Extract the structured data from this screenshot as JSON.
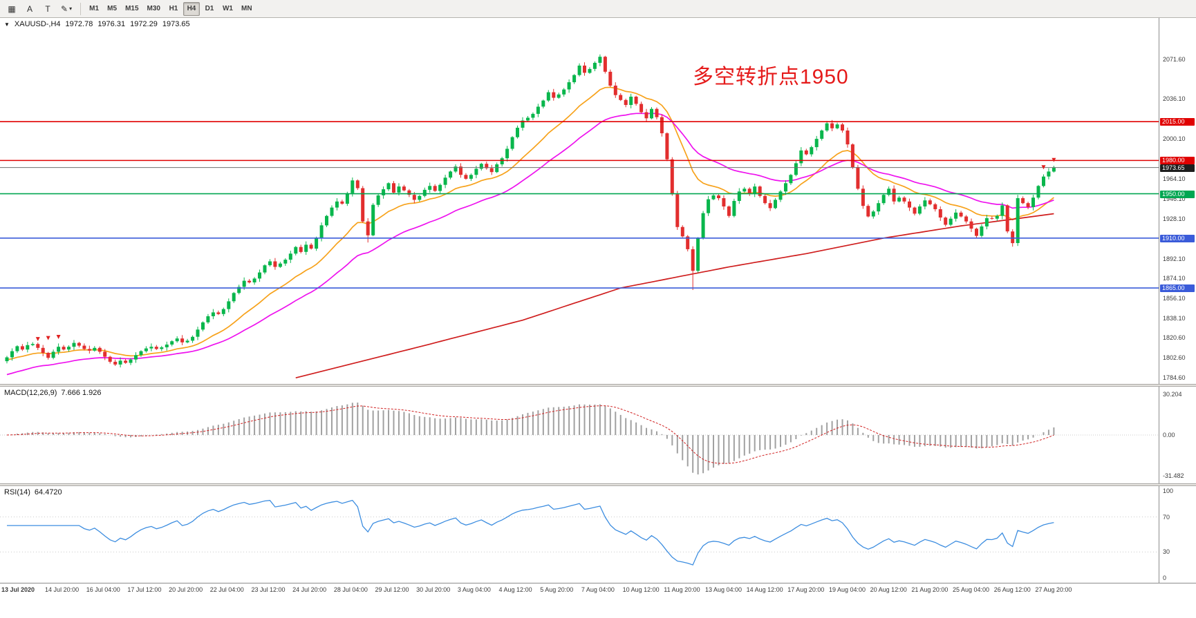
{
  "toolbar": {
    "tools": [
      {
        "name": "chart-grid",
        "glyph": "▦"
      },
      {
        "name": "cursor-arrow",
        "glyph": "A"
      },
      {
        "name": "text-tool",
        "glyph": "T"
      },
      {
        "name": "draw-shapes",
        "glyph": "✎",
        "dropdown": "▾"
      }
    ],
    "timeframes": [
      {
        "label": "M1"
      },
      {
        "label": "M5"
      },
      {
        "label": "M15"
      },
      {
        "label": "M30"
      },
      {
        "label": "H1"
      },
      {
        "label": "H4",
        "active": true
      },
      {
        "label": "D1"
      },
      {
        "label": "W1"
      },
      {
        "label": "MN"
      }
    ]
  },
  "main_panel": {
    "symbol_marker": "▼",
    "symbol": "XAUUSD-,H4",
    "ohlc": {
      "open": "1972.78",
      "high": "1976.31",
      "low": "1972.29",
      "close": "1973.65"
    },
    "annotation": {
      "text": "多空转折点1950",
      "color": "#e51a1a"
    }
  },
  "indicators": {
    "macd": {
      "label": "MACD(12,26,9)",
      "values": "7.666 1.926",
      "axis_labels": [
        "30.204",
        "0.00",
        "-31.482"
      ]
    },
    "rsi": {
      "label": "RSI(14)",
      "value": "64.4720",
      "axis_labels": [
        100,
        70,
        30,
        0
      ],
      "levels": [
        70,
        30
      ],
      "color": "#3c8de0"
    }
  },
  "chart_data": {
    "type": "candlestick",
    "symbol": "XAUUSD",
    "timeframe": "H4",
    "current_price": 1973.65,
    "price_axis": {
      "top_price": 2106,
      "bottom_price": 1781,
      "ticks": [
        "2071.60",
        "2036.10",
        "2000.10",
        "1964.10",
        "1946.10",
        "1928.10",
        "1892.10",
        "1874.10",
        "1856.10",
        "1838.10",
        "1820.60",
        "1802.60",
        "1784.60"
      ]
    },
    "levels": [
      {
        "price": 2015.0,
        "label": "2015.00",
        "color": "#e00000"
      },
      {
        "price": 1980.0,
        "label": "1980.00",
        "color": "#e00000"
      },
      {
        "price": 1950.0,
        "label": "1950.00",
        "color": "#00a651"
      },
      {
        "price": 1910.0,
        "label": "1910.00",
        "color": "#3a5bd9"
      },
      {
        "price": 1865.0,
        "label": "1865.00",
        "color": "#3a5bd9"
      }
    ],
    "bid_line": {
      "price": 1973.65,
      "label": "1973.65",
      "line_color": "#6f6f6f",
      "bg": "#1e1e1e"
    },
    "candles": {
      "up_color": "#09b64c",
      "down_color": "#e22e2e",
      "first_open": 1799.0,
      "wick_pattern": [
        1.3,
        2.6,
        0.9,
        2.0,
        3.0,
        1.6
      ],
      "overrides": {
        "70": {
          "low": 1906.0
        },
        "115": {
          "high": 2075.6
        },
        "133": {
          "low": 1863.2
        },
        "159": {
          "high": 2015.6
        },
        "195": {
          "low": 1902.3
        }
      },
      "closes": [
        1802.5,
        1808.0,
        1812.5,
        1809.5,
        1813.5,
        1814.5,
        1811.0,
        1806.5,
        1802.0,
        1807.5,
        1812.0,
        1809.5,
        1812.0,
        1815.5,
        1813.0,
        1810.0,
        1808.5,
        1811.0,
        1807.5,
        1803.0,
        1798.5,
        1796.0,
        1799.5,
        1797.5,
        1800.5,
        1804.5,
        1808.0,
        1810.5,
        1812.0,
        1810.0,
        1811.5,
        1814.0,
        1817.0,
        1819.5,
        1816.0,
        1817.5,
        1821.0,
        1827.5,
        1834.0,
        1839.5,
        1843.0,
        1841.5,
        1846.0,
        1853.0,
        1860.5,
        1866.0,
        1871.5,
        1870.0,
        1873.5,
        1879.0,
        1885.5,
        1889.0,
        1884.0,
        1887.0,
        1890.5,
        1896.0,
        1902.0,
        1897.5,
        1904.0,
        1900.5,
        1910.0,
        1921.5,
        1930.0,
        1937.5,
        1943.0,
        1941.0,
        1950.5,
        1962.0,
        1955.0,
        1925.0,
        1912.5,
        1940.0,
        1948.5,
        1954.0,
        1959.5,
        1951.0,
        1956.5,
        1953.0,
        1949.0,
        1944.5,
        1948.0,
        1953.5,
        1957.0,
        1952.5,
        1958.0,
        1964.5,
        1970.0,
        1974.5,
        1967.0,
        1963.5,
        1967.0,
        1972.5,
        1977.0,
        1973.0,
        1969.5,
        1976.5,
        1982.0,
        1990.5,
        2001.0,
        2009.5,
        2016.0,
        2018.5,
        2022.0,
        2028.5,
        2034.0,
        2041.5,
        2036.5,
        2039.5,
        2044.0,
        2050.5,
        2057.0,
        2065.5,
        2059.0,
        2062.5,
        2068.0,
        2073.5,
        2060.0,
        2047.5,
        2039.0,
        2034.5,
        2030.0,
        2037.5,
        2031.0,
        2023.5,
        2018.0,
        2026.5,
        2019.0,
        2004.5,
        1981.0,
        1949.5,
        1920.0,
        1911.5,
        1900.0,
        1880.5,
        1910.0,
        1932.5,
        1945.0,
        1948.5,
        1946.0,
        1938.5,
        1930.0,
        1943.5,
        1952.0,
        1954.5,
        1950.0,
        1956.5,
        1948.0,
        1941.5,
        1937.0,
        1944.5,
        1952.0,
        1959.5,
        1967.0,
        1977.5,
        1989.0,
        1985.5,
        1992.0,
        1999.5,
        2007.0,
        2013.5,
        2009.0,
        2012.5,
        2007.0,
        1994.5,
        1974.0,
        1954.5,
        1939.0,
        1929.5,
        1934.0,
        1941.5,
        1949.0,
        1954.5,
        1943.0,
        1946.5,
        1943.0,
        1937.5,
        1932.0,
        1938.5,
        1944.0,
        1940.5,
        1936.0,
        1928.5,
        1922.0,
        1927.5,
        1933.0,
        1929.5,
        1925.0,
        1918.5,
        1912.0,
        1920.5,
        1928.0,
        1927.5,
        1930.0,
        1939.5,
        1916.0,
        1905.5,
        1946.0,
        1941.5,
        1938.0,
        1946.5,
        1957.0,
        1965.5,
        1970.0,
        1973.65
      ]
    },
    "moving_averages": [
      {
        "name": "fast-ma",
        "type": "ema",
        "period": 16,
        "seed": 1800,
        "color": "#f7a21b"
      },
      {
        "name": "mid-ma",
        "type": "ema",
        "period": 34,
        "seed": 1786,
        "color": "#ee12ee"
      },
      {
        "name": "slow-ma",
        "type": "anchors",
        "color": "#cf1d1d",
        "points": [
          [
            56,
            1784
          ],
          [
            80,
            1812
          ],
          [
            100,
            1836
          ],
          [
            119,
            1865
          ],
          [
            140,
            1884
          ],
          [
            155,
            1896
          ],
          [
            170,
            1910
          ],
          [
            185,
            1921
          ],
          [
            195,
            1927
          ],
          [
            203,
            1932
          ]
        ]
      }
    ],
    "sell_arrows": [
      {
        "index": 6,
        "price": 1817
      },
      {
        "index": 8,
        "price": 1818
      },
      {
        "index": 10,
        "price": 1819
      },
      {
        "index": 201,
        "price": 1972
      },
      {
        "index": 203,
        "price": 1978.5
      }
    ],
    "macd": {
      "fast": 12,
      "slow": 26,
      "signal": 9,
      "histogram_color": "#a0a0a0",
      "signal_color": "#d02020"
    },
    "rsi_period": 14,
    "time_axis": {
      "labels": [
        "13 Jul 2020",
        "14 Jul 20:00",
        "16 Jul 04:00",
        "17 Jul 12:00",
        "20 Jul 20:00",
        "22 Jul 04:00",
        "23 Jul 12:00",
        "24 Jul 20:00",
        "28 Jul 04:00",
        "29 Jul 12:00",
        "30 Jul 20:00",
        "3 Aug 04:00",
        "4 Aug 12:00",
        "5 Aug 20:00",
        "7 Aug 04:00",
        "10 Aug 12:00",
        "11 Aug 20:00",
        "13 Aug 04:00",
        "14 Aug 12:00",
        "17 Aug 20:00",
        "19 Aug 04:00",
        "20 Aug 12:00",
        "21 Aug 20:00",
        "25 Aug 04:00",
        "26 Aug 12:00",
        "27 Aug 20:00"
      ],
      "indices": [
        0,
        11,
        19,
        27,
        35,
        43,
        51,
        59,
        67,
        75,
        83,
        91,
        99,
        107,
        115,
        123,
        131,
        139,
        147,
        155,
        163,
        171,
        179,
        187,
        195,
        203
      ]
    }
  }
}
